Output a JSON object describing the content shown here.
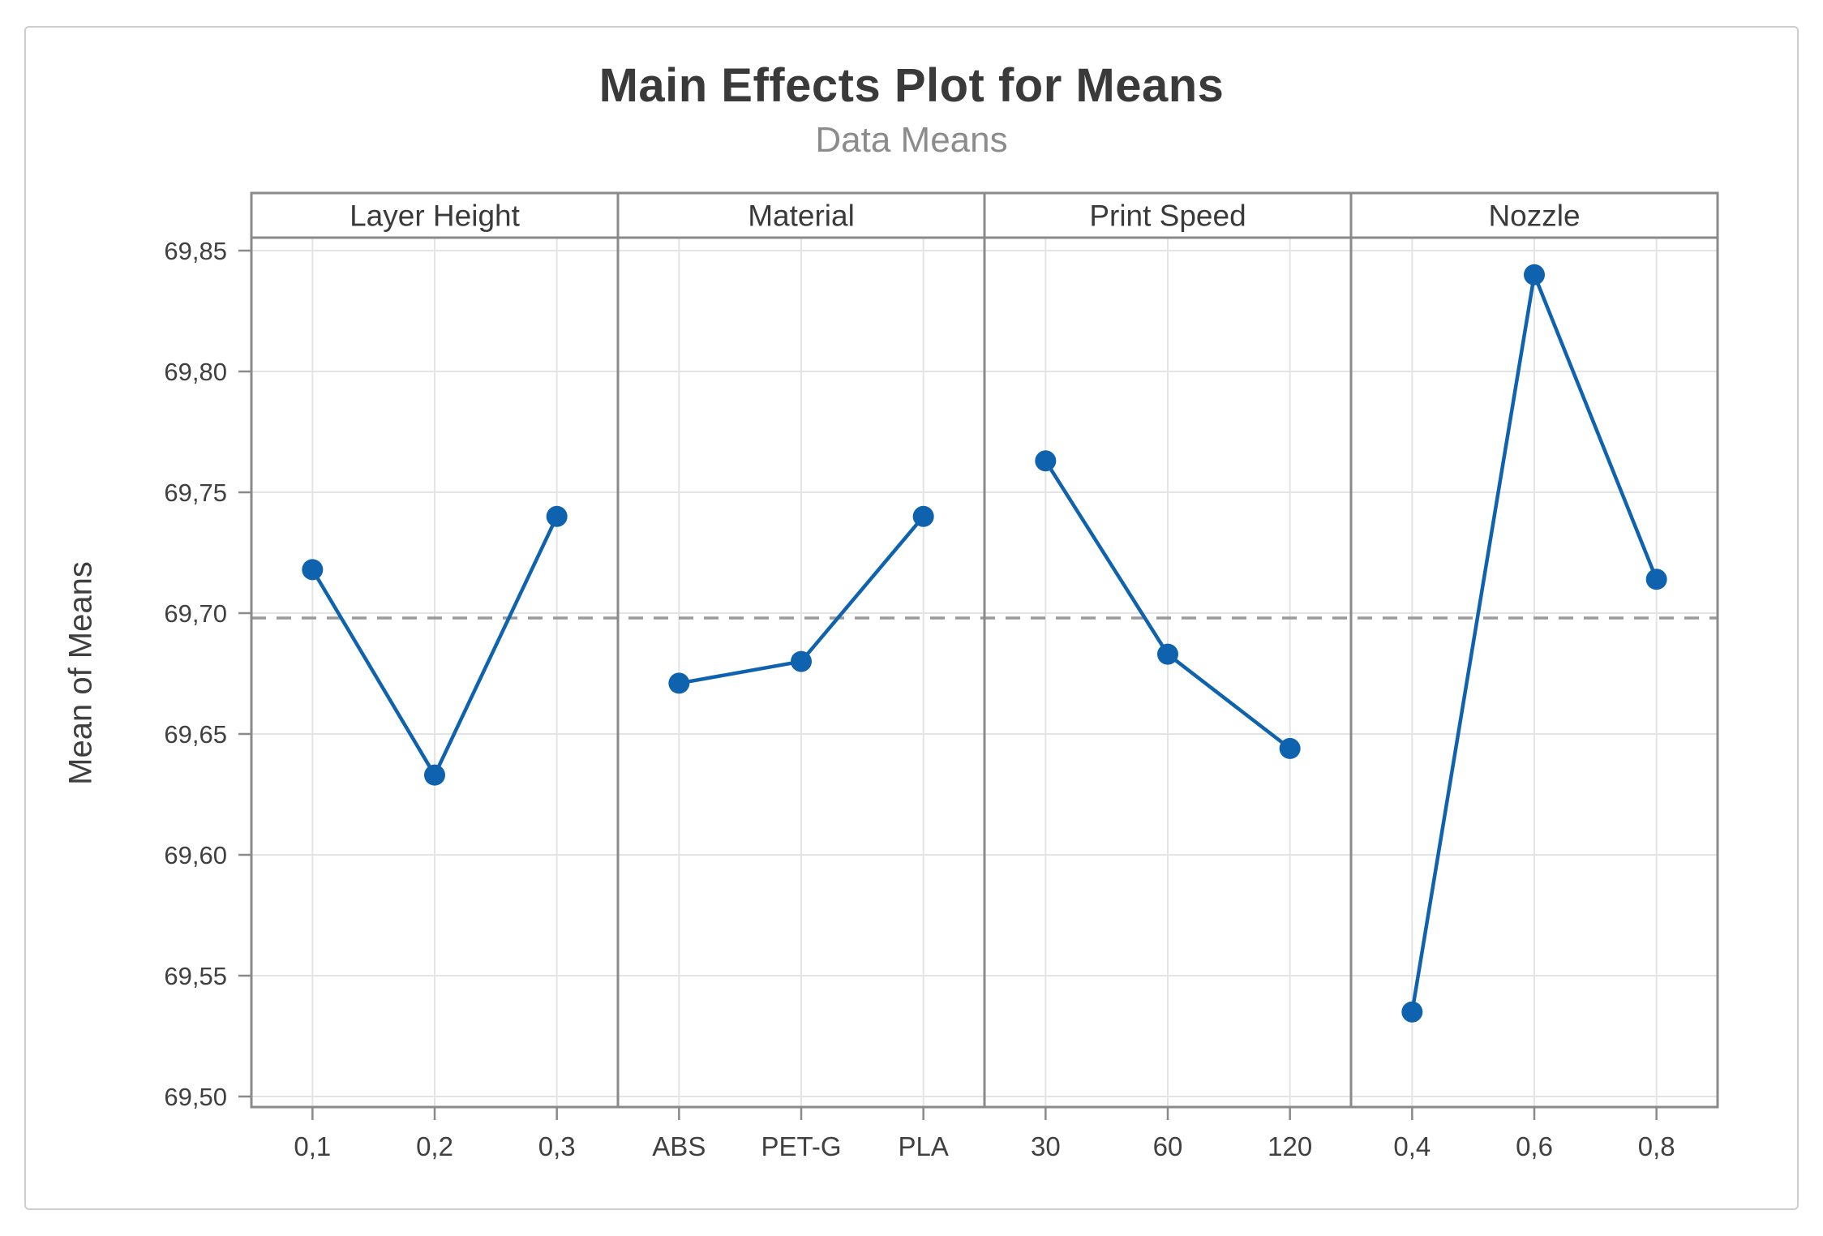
{
  "chart_data": {
    "type": "line",
    "title": "Main Effects Plot for Means",
    "subtitle": "Data Means",
    "ylabel": "Mean of Means",
    "decimal_separator": ",",
    "ylim": [
      69.5,
      69.85
    ],
    "grid": true,
    "legend": "none",
    "yticks": [
      {
        "value": 69.85,
        "label": "69,85"
      },
      {
        "value": 69.8,
        "label": "69,80"
      },
      {
        "value": 69.75,
        "label": "69,75"
      },
      {
        "value": 69.7,
        "label": "69,70"
      },
      {
        "value": 69.65,
        "label": "69,65"
      },
      {
        "value": 69.6,
        "label": "69,60"
      },
      {
        "value": 69.55,
        "label": "69,55"
      },
      {
        "value": 69.5,
        "label": "69,50"
      }
    ],
    "grand_mean": 69.698,
    "panels": [
      {
        "label": "Layer Height",
        "categories": [
          "0,1",
          "0,2",
          "0,3"
        ],
        "values": [
          69.718,
          69.633,
          69.74
        ]
      },
      {
        "label": "Material",
        "categories": [
          "ABS",
          "PET-G",
          "PLA"
        ],
        "values": [
          69.671,
          69.68,
          69.74
        ]
      },
      {
        "label": "Print Speed",
        "categories": [
          "30",
          "60",
          "120"
        ],
        "values": [
          69.763,
          69.683,
          69.644
        ]
      },
      {
        "label": "Nozzle",
        "categories": [
          "0,4",
          "0,6",
          "0,8"
        ],
        "values": [
          69.535,
          69.84,
          69.714
        ]
      }
    ],
    "colors": {
      "series": "#0f63ae",
      "grid": "#e4e4e4",
      "panel_border": "#8a8a8a",
      "mean_line": "#9a9a9a",
      "title": "#3a3a3a",
      "subtitle": "#8c8c8c",
      "text": "#404040",
      "frame": "#cdcdcd"
    }
  }
}
